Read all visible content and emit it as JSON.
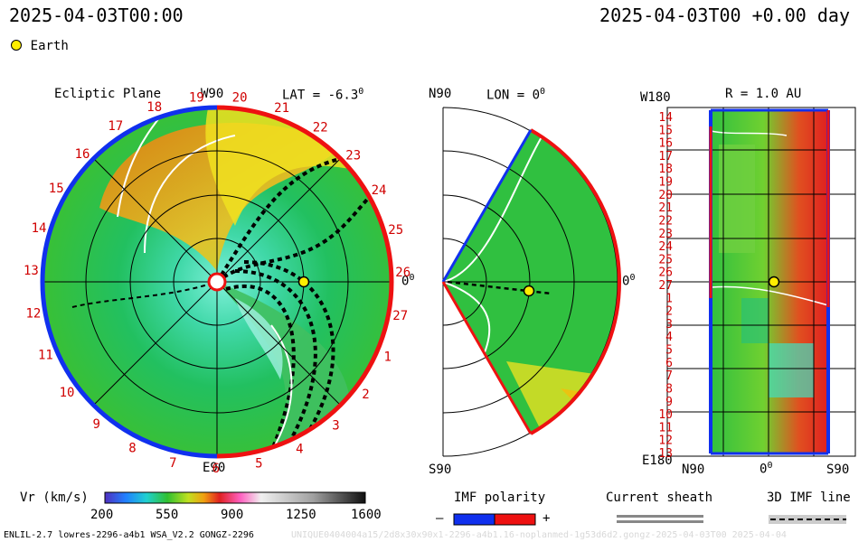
{
  "header": {
    "left_timestamp": "2025-04-03T00:00",
    "right_timestamp": "2025-04-03T00 +0.00 day",
    "legend_label": "Earth"
  },
  "panels": {
    "ecliptic": {
      "title": "Ecliptic Plane",
      "top": "W90",
      "bottom": "E90",
      "lat": "LAT = -6.3",
      "lat_deg": "0",
      "right": "0",
      "right_deg": "0"
    },
    "meridional": {
      "north": "N90",
      "south": "S90",
      "lon": "LON = 0",
      "lon_deg": "0",
      "right": "0",
      "right_deg": "0"
    },
    "radial": {
      "top": "W180",
      "bottom": "E180",
      "r": "R = 1.0 AU",
      "x_left": "N90",
      "x_mid": "0",
      "x_mid_deg": "0",
      "x_right": "S90"
    }
  },
  "ecliptic_ticks": [
    "19",
    "20",
    "21",
    "22",
    "23",
    "24",
    "25",
    "26",
    "27",
    "1",
    "2",
    "3",
    "4",
    "5",
    "6",
    "7",
    "8",
    "9",
    "10",
    "11",
    "12",
    "13",
    "14",
    "15",
    "16",
    "17",
    "18"
  ],
  "radial_ticks": [
    "14",
    "15",
    "16",
    "17",
    "18",
    "19",
    "20",
    "21",
    "22",
    "23",
    "24",
    "25",
    "26",
    "27",
    "1",
    "2",
    "3",
    "4",
    "5",
    "6",
    "7",
    "8",
    "9",
    "10",
    "11",
    "12",
    "13"
  ],
  "colorbar": {
    "label": "Vr (km/s)",
    "ticks": [
      "200",
      "550",
      "900",
      "1250",
      "1600"
    ]
  },
  "legends": {
    "imf_title": "IMF polarity",
    "imf_minus": "–",
    "imf_plus": "+",
    "sheath_title": "Current sheath",
    "imf_line_title": "3D IMF line"
  },
  "footer": {
    "left": "ENLIL-2.7 lowres-2296-a4b1 WSA_V2.2 GONGZ-2296",
    "right": "UNIQUE0404004a15/2d8x30x90x1-2296-a4b1.16-noplanmed-1g53d6d2.gongz-2025-04-03T00   2025-04-04"
  },
  "colors": {
    "positive": "#ee1111",
    "negative": "#1030ee",
    "earth": "#ffee00",
    "tick": "#d00000"
  }
}
